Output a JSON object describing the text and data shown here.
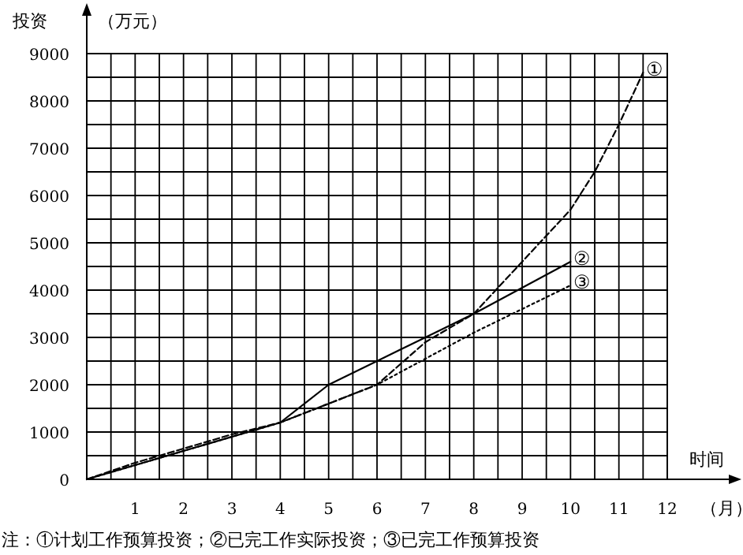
{
  "chart_data": {
    "type": "line",
    "xlabel": "时间",
    "ylabel": "投资",
    "annotations": [
      "（万元）",
      "（月）",
      "注：①计划工作预算投资；②已完工作实际投资；③已完工作预算投资"
    ],
    "xlim": [
      0,
      12
    ],
    "ylim": [
      0,
      9000
    ],
    "xticks": [
      {
        "value": 0.5,
        "label": null
      },
      1,
      {
        "value": 1.5,
        "label": null
      },
      2,
      {
        "value": 2.5,
        "label": null
      },
      3,
      {
        "value": 3.5,
        "label": null
      },
      4,
      {
        "value": 4.5,
        "label": null
      },
      5,
      {
        "value": 5.5,
        "label": null
      },
      6,
      {
        "value": 6.5,
        "label": null
      },
      7,
      {
        "value": 7.5,
        "label": null
      },
      8,
      {
        "value": 8.5,
        "label": null
      },
      9,
      {
        "value": 9.5,
        "label": null
      },
      10,
      {
        "value": 10.5,
        "label": null
      },
      11,
      {
        "value": 11.5,
        "label": null
      },
      12
    ],
    "yticks": [
      0,
      {
        "value": 500,
        "label": null
      },
      1000,
      {
        "value": 1500,
        "label": null
      },
      2000,
      {
        "value": 2500,
        "label": null
      },
      3000,
      {
        "value": 3500,
        "label": null
      },
      4000,
      {
        "value": 4500,
        "label": null
      },
      5000,
      {
        "value": 5500,
        "label": null
      },
      6000,
      {
        "value": 6500,
        "label": null
      },
      7000,
      {
        "value": 7500,
        "label": null
      },
      8000,
      {
        "value": 8500,
        "label": null
      },
      9000
    ],
    "grid": true,
    "series": [
      {
        "name": "①",
        "color": "#000000",
        "line_style": "dashed",
        "x": [
          0,
          1,
          2,
          3,
          4,
          5,
          6,
          7,
          8,
          9,
          10,
          10.5,
          11,
          11.5
        ],
        "values": [
          0,
          350,
          650,
          950,
          1200,
          1600,
          2000,
          2900,
          3500,
          4600,
          5700,
          6500,
          7500,
          8600
        ]
      },
      {
        "name": "②",
        "color": "#000000",
        "line_style": "solid",
        "x": [
          0,
          4,
          5,
          6,
          7,
          8,
          10
        ],
        "values": [
          0,
          1200,
          2000,
          2500,
          3000,
          3500,
          4600
        ]
      },
      {
        "name": "③",
        "color": "#000000",
        "line_style": "dotted",
        "x": [
          0,
          4,
          6,
          8,
          10
        ],
        "values": [
          0,
          1200,
          2000,
          3100,
          4100
        ]
      }
    ]
  }
}
